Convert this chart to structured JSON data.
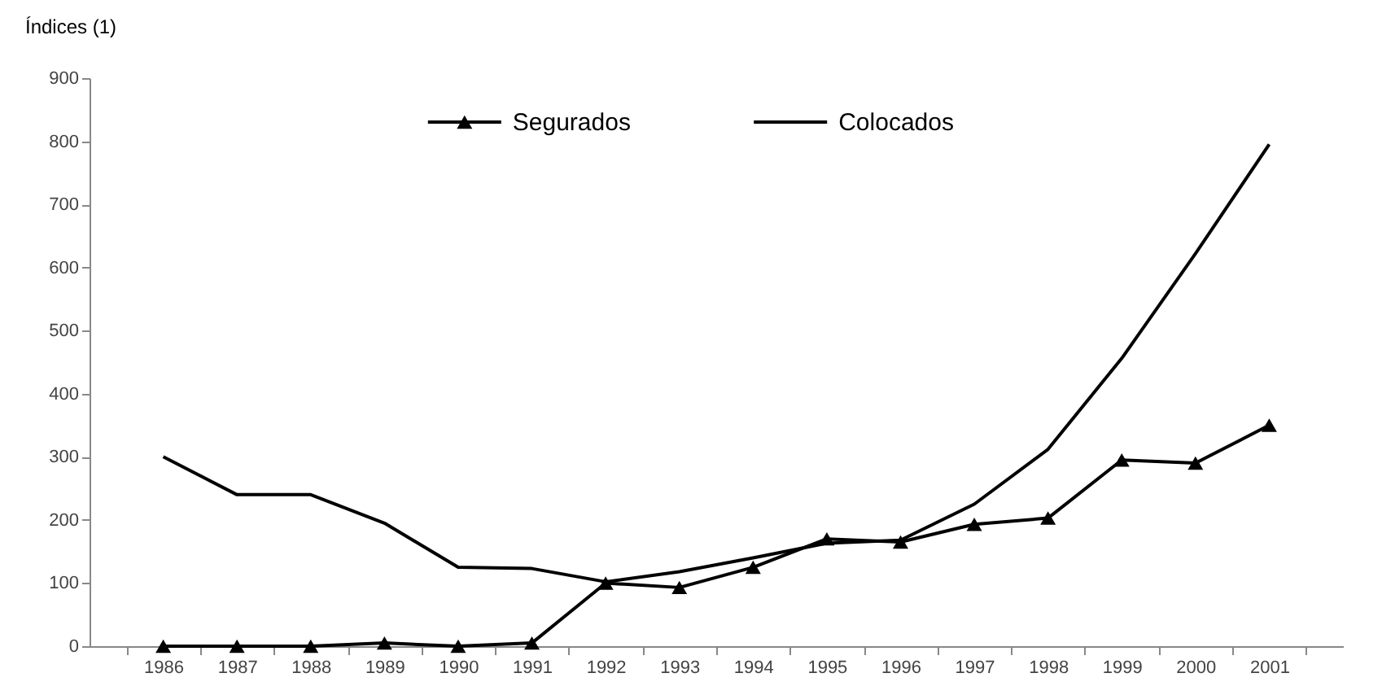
{
  "chart_data": {
    "type": "line",
    "ylabel": "Índices (1)",
    "categories": [
      "1986",
      "1987",
      "1988",
      "1989",
      "1990",
      "1991",
      "1992",
      "1993",
      "1994",
      "1995",
      "1996",
      "1997",
      "1998",
      "1999",
      "2000",
      "2001"
    ],
    "series": [
      {
        "name": "Segurados",
        "color": "#000000",
        "marker": "triangle",
        "values": [
          0,
          0,
          0,
          5,
          0,
          5,
          100,
          93,
          125,
          170,
          165,
          193,
          203,
          295,
          290,
          350
        ]
      },
      {
        "name": "Colocados",
        "color": "#000000",
        "marker": "none",
        "values": [
          300,
          240,
          240,
          195,
          125,
          123,
          102,
          118,
          140,
          163,
          168,
          225,
          312,
          456,
          622,
          795
        ]
      }
    ],
    "ylim": [
      0,
      900
    ],
    "yticks": [
      0,
      100,
      200,
      300,
      400,
      500,
      600,
      700,
      800,
      900
    ],
    "grid": false,
    "legend": "top",
    "line_style": "solid"
  }
}
